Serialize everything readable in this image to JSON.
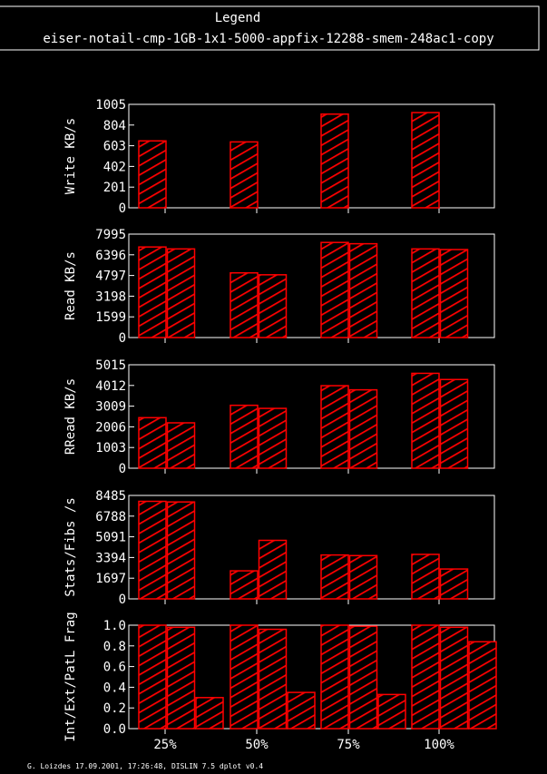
{
  "legend": {
    "title": "Legend",
    "entry": "eiser-notail-cmp-1GB-1x1-5000-appfix-12288-smem-248ac1-copy"
  },
  "footer": "G. Loizdes 17.09.2001, 17:26:48, DISLIN 7.5 dplot v0.4",
  "colors": {
    "bar": "#ff0000",
    "frame": "#ffffff",
    "background": "#000000"
  },
  "chart_data": [
    {
      "type": "bar",
      "ylabel": "Write KB/s",
      "categories": [
        "25%",
        "50%",
        "75%",
        "100%"
      ],
      "yticks": [
        "0",
        "201",
        "402",
        "603",
        "804",
        "1005"
      ],
      "ylim": [
        0,
        1005
      ],
      "series": [
        {
          "values": [
            650,
            640,
            910,
            925
          ]
        }
      ]
    },
    {
      "type": "bar",
      "ylabel": "Read KB/s",
      "categories": [
        "25%",
        "50%",
        "75%",
        "100%"
      ],
      "yticks": [
        "0",
        "1599",
        "3198",
        "4797",
        "6396",
        "7995"
      ],
      "ylim": [
        0,
        7995
      ],
      "series": [
        {
          "values": [
            7000,
            5000,
            7350,
            6850
          ]
        },
        {
          "values": [
            6850,
            4850,
            7250,
            6800
          ]
        }
      ]
    },
    {
      "type": "bar",
      "ylabel": "RRead KB/s",
      "categories": [
        "25%",
        "50%",
        "75%",
        "100%"
      ],
      "yticks": [
        "0",
        "1003",
        "2006",
        "3009",
        "4012",
        "5015"
      ],
      "ylim": [
        0,
        5015
      ],
      "series": [
        {
          "values": [
            2450,
            3050,
            4000,
            4600
          ]
        },
        {
          "values": [
            2200,
            2900,
            3800,
            4300
          ]
        }
      ]
    },
    {
      "type": "bar",
      "ylabel": "Stats/Fibs /s",
      "categories": [
        "25%",
        "50%",
        "75%",
        "100%"
      ],
      "yticks": [
        "0",
        "1697",
        "3394",
        "5091",
        "6788",
        "8485"
      ],
      "ylim": [
        0,
        8485
      ],
      "series": [
        {
          "values": [
            8000,
            2300,
            3600,
            3650
          ]
        },
        {
          "values": [
            7950,
            4800,
            3550,
            2450
          ]
        }
      ]
    },
    {
      "type": "bar",
      "ylabel": "Int/Ext/PatL Frag",
      "categories": [
        "25%",
        "50%",
        "75%",
        "100%"
      ],
      "yticks": [
        "0.0",
        "0.2",
        "0.4",
        "0.6",
        "0.8",
        "1.0"
      ],
      "ylim": [
        0,
        1.0
      ],
      "series": [
        {
          "values": [
            1.0,
            1.0,
            1.0,
            1.0
          ]
        },
        {
          "values": [
            0.98,
            0.96,
            0.99,
            0.98
          ]
        },
        {
          "values": [
            0.3,
            0.35,
            0.33,
            0.84
          ]
        }
      ]
    }
  ]
}
